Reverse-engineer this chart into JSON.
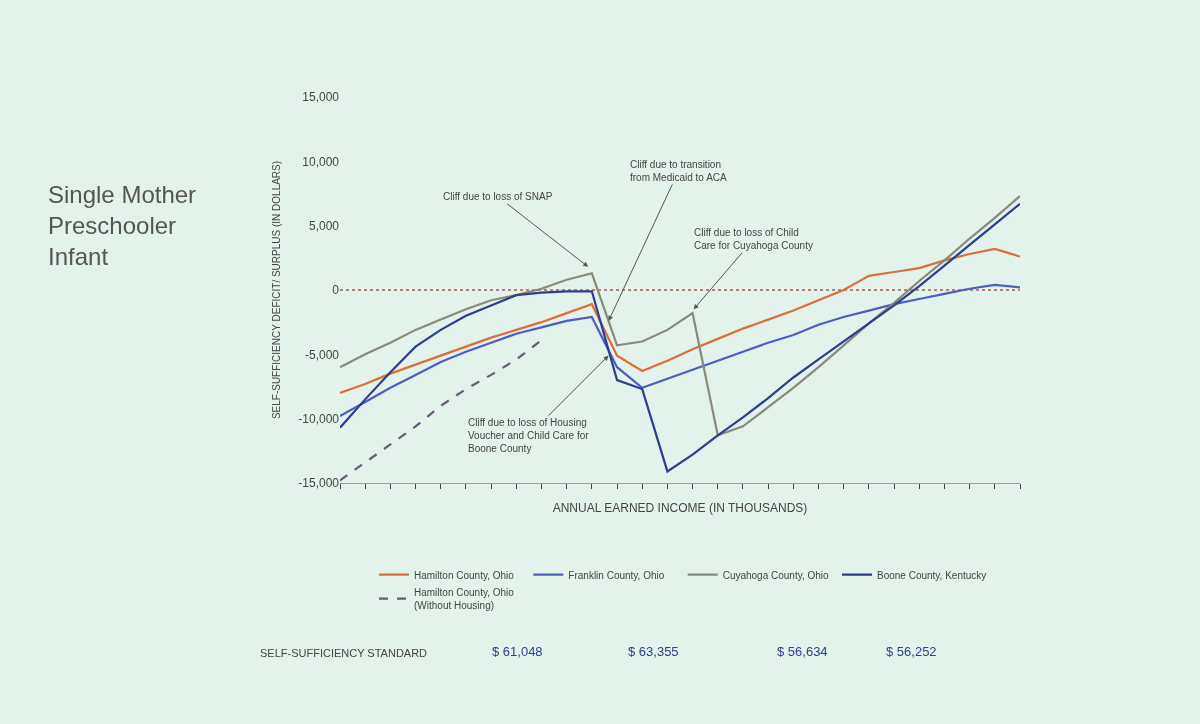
{
  "chart_data": {
    "type": "line",
    "title": "Single Mother\nPreschooler\nInfant",
    "xlabel": "ANNUAL EARNED INCOME (IN THOUSANDS)",
    "ylabel": "SELF-SUFFICIENCY DEFICIT/ SURPLUS (IN DOLLARS)",
    "categories": [
      null,
      null,
      null,
      null,
      null,
      null,
      null,
      null,
      null,
      null,
      null,
      null,
      null,
      null,
      null,
      null,
      null,
      null,
      null,
      null,
      null,
      null,
      null,
      null,
      null,
      null,
      null,
      null
    ],
    "ylim": [
      -15000,
      15000
    ],
    "yticks": [
      {
        "value": -15000,
        "label": "-15,000"
      },
      {
        "value": -10000,
        "label": "-10,000"
      },
      {
        "value": -5000,
        "label": "-5,000"
      },
      0,
      {
        "value": 5000,
        "label": "5,000"
      },
      {
        "value": 10000,
        "label": "10,000"
      },
      {
        "value": 15000,
        "label": "15,000"
      }
    ],
    "grid": false,
    "legend": "bottom",
    "marker": "none",
    "series": [
      {
        "name": "Hamilton County, Ohio",
        "color": "#d9703a",
        "values": [
          -8000,
          -7300,
          -6500,
          -5800,
          -5100,
          -4400,
          -3700,
          -3100,
          -2500,
          -1800,
          -1100,
          -5100,
          -6300,
          -5500,
          -4600,
          -3800,
          -3000,
          -2300,
          -1600,
          -800,
          0,
          1100,
          1400,
          1700,
          2300,
          2800,
          3200,
          2600
        ]
      },
      {
        "name": "Franklin County, Ohio",
        "color": "#4a5fc1",
        "values": [
          -9800,
          -8700,
          -7600,
          -6600,
          -5600,
          -4800,
          -4100,
          -3400,
          -2900,
          -2400,
          -2100,
          -6000,
          -7600,
          -6900,
          -6200,
          -5500,
          -4800,
          -4100,
          -3500,
          -2700,
          -2100,
          -1600,
          -1100,
          -700,
          -300,
          100,
          400,
          200
        ]
      },
      {
        "name": "Cuyahoga County, Ohio",
        "color": "#8a8a78",
        "values": [
          -6000,
          -5000,
          -4100,
          -3100,
          -2300,
          -1500,
          -800,
          -400,
          100,
          800,
          1300,
          -4300,
          -4000,
          -3100,
          -1800,
          -11300,
          -10600,
          -9100,
          -7600,
          -6000,
          -4300,
          -2600,
          -1000,
          700,
          2300,
          4000,
          5600,
          7300
        ]
      },
      {
        "name": "Boone County, Kentucky",
        "color": "#2c3e8c",
        "values": [
          -10700,
          -8500,
          -6400,
          -4400,
          -3100,
          -2000,
          -1200,
          -400,
          -200,
          -100,
          -100,
          -7000,
          -7700,
          -14100,
          -12800,
          -11300,
          -9900,
          -8400,
          -6800,
          -5400,
          -4000,
          -2600,
          -1200,
          300,
          1900,
          3500,
          5100,
          6700
        ]
      },
      {
        "name": "Hamilton County, Ohio\n(Without Housing)",
        "color": "#6a5a7a",
        "line_style": "dashed",
        "values": [
          -14800,
          -13400,
          -12000,
          -10600,
          -9000,
          -7700,
          -6600,
          -5400,
          -3900,
          null,
          null,
          null,
          null,
          null,
          null,
          null,
          null,
          null,
          null,
          null,
          null,
          null,
          null,
          null,
          null,
          null,
          null,
          null
        ]
      }
    ],
    "ref_lines": [
      {
        "axis": "y",
        "value": 0,
        "color": "#c0504d",
        "line_style": "dotted"
      }
    ],
    "annotations": [
      "Cliff due to loss of SNAP",
      "Cliff due to transition\nfrom Medicaid to ACA",
      "Cliff due to loss of Child\nCare for Cuyahoga County",
      "Cliff due to loss of Housing\nVoucher and Child Care for\nBoone County",
      "SELF-SUFFICIENCY STANDARD",
      "$ 61,048",
      "$ 63,355",
      "$ 56,634",
      "$ 56,252"
    ]
  }
}
